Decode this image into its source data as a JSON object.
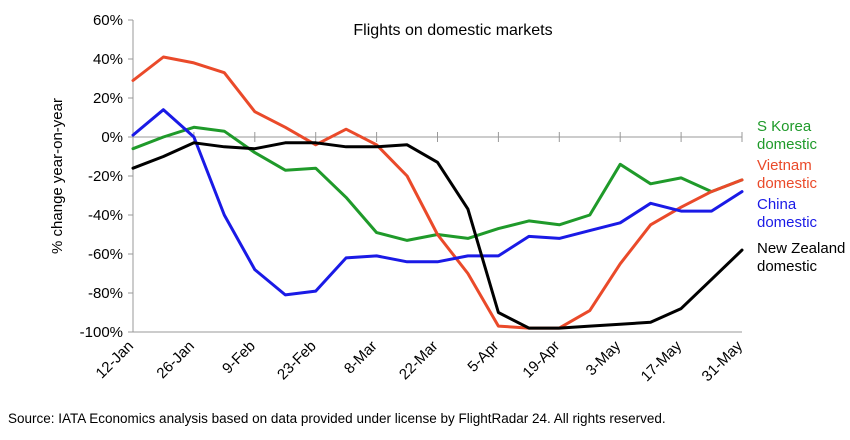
{
  "chart_data": {
    "type": "line",
    "title": "Flights on domestic markets",
    "ylabel": "% change year-on-year",
    "xlabel": "",
    "ylim": [
      -100,
      60
    ],
    "y_ticks": [
      60,
      40,
      20,
      0,
      -20,
      -40,
      -60,
      -80,
      -100
    ],
    "y_tick_labels": [
      "60%",
      "40%",
      "20%",
      "0%",
      "-20%",
      "-40%",
      "-60%",
      "-80%",
      "-100%"
    ],
    "x_tick_labels": [
      "12-Jan",
      "26-Jan",
      "9-Feb",
      "23-Feb",
      "8-Mar",
      "22-Mar",
      "5-Apr",
      "19-Apr",
      "3-May",
      "17-May",
      "31-May"
    ],
    "x_count": 21,
    "grid": false,
    "legend": "direct labels at right",
    "series": [
      {
        "name_lines": [
          "S Korea",
          "domestic"
        ],
        "color": "#1f9a2a",
        "values": [
          -6,
          0,
          5,
          3,
          -8,
          -17,
          -16,
          -31,
          -49,
          -53,
          -50,
          -52,
          -47,
          -43,
          -45,
          -40,
          -14,
          -24,
          -21,
          -28,
          -22
        ]
      },
      {
        "name_lines": [
          "Vietnam",
          "domestic"
        ],
        "color": "#ea4a2a",
        "values": [
          29,
          41,
          38,
          33,
          13,
          5,
          -4,
          4,
          -4,
          -20,
          -50,
          -70,
          -97,
          -98,
          -98,
          -89,
          -65,
          -45,
          -36,
          -28,
          -22
        ]
      },
      {
        "name_lines": [
          "China",
          "domestic"
        ],
        "color": "#1a1ae6",
        "values": [
          1,
          14,
          0,
          -40,
          -68,
          -81,
          -79,
          -62,
          -61,
          -64,
          -64,
          -61,
          -61,
          -51,
          -52,
          -48,
          -44,
          -34,
          -38,
          -38,
          -28
        ]
      },
      {
        "name_lines": [
          "New Zealand",
          "domestic"
        ],
        "color": "#000000",
        "values": [
          -16,
          -10,
          -3,
          -5,
          -6,
          -3,
          -3,
          -5,
          -5,
          -4,
          -13,
          -37,
          -90,
          -98,
          -98,
          -97,
          -96,
          -95,
          -88,
          -73,
          -58
        ]
      }
    ]
  },
  "source": "Source: IATA Economics analysis based on data provided under license by FlightRadar 24. All rights reserved."
}
